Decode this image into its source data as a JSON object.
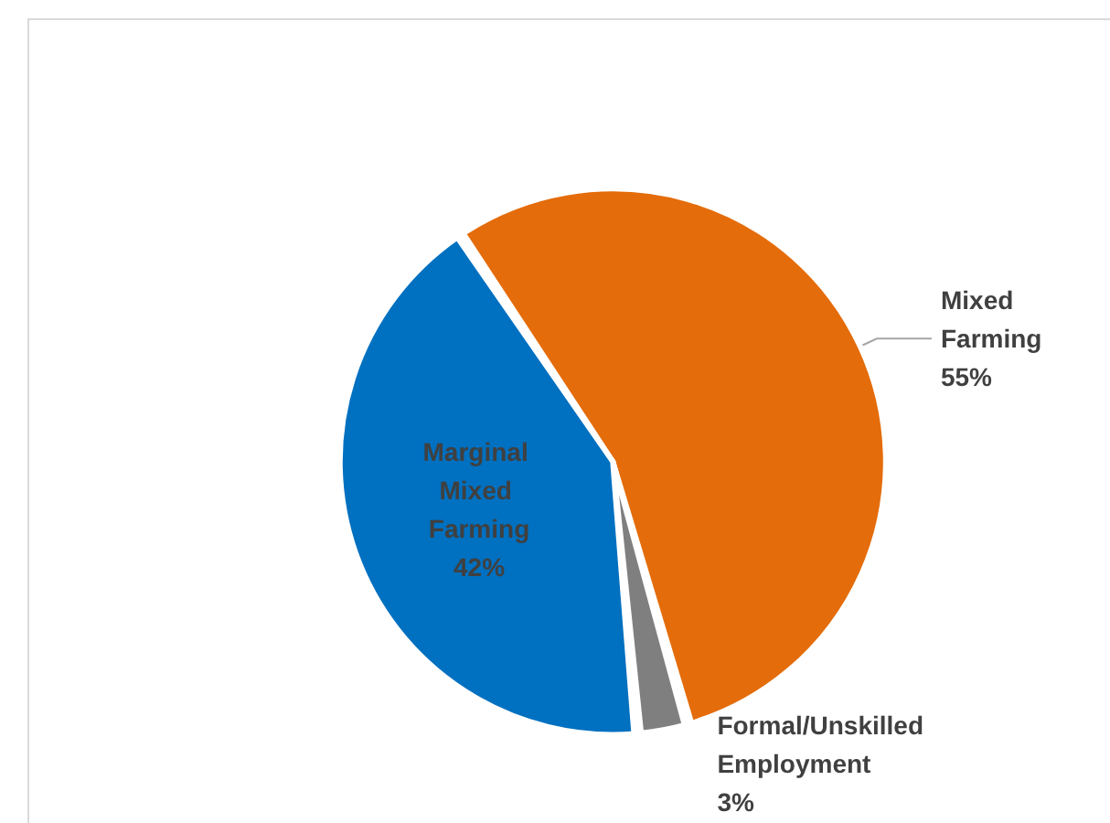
{
  "chart_data": {
    "type": "pie",
    "categories": [
      "Mixed Farming",
      "Formal/Unskilled Employment",
      "Marginal Mixed Farming"
    ],
    "values": [
      55,
      3,
      42
    ],
    "value_labels": [
      "55%",
      "3%",
      "42%"
    ],
    "colors": [
      "#e46c0a",
      "#7f7f7f",
      "#0070c0"
    ],
    "legend": false
  }
}
